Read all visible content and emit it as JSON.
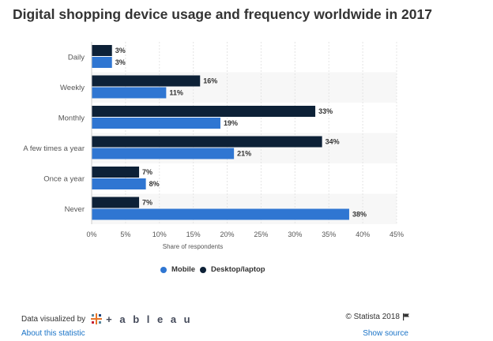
{
  "title": "Digital shopping device usage and frequency worldwide in 2017",
  "chart_data": {
    "type": "bar",
    "orientation": "horizontal",
    "categories": [
      "Daily",
      "Weekly",
      "Monthly",
      "A few times a year",
      "Once a year",
      "Never"
    ],
    "series": [
      {
        "name": "Desktop/laptop",
        "values": [
          3,
          16,
          33,
          34,
          7,
          7
        ],
        "color": "#0d2137"
      },
      {
        "name": "Mobile",
        "values": [
          3,
          11,
          19,
          21,
          8,
          38
        ],
        "color": "#2f76d2"
      }
    ],
    "value_suffix": "%",
    "xlabel": "Share of respondents",
    "xlim": [
      0,
      45
    ],
    "xticks": [
      0,
      5,
      10,
      15,
      20,
      25,
      30,
      35,
      40,
      45
    ],
    "xtick_labels": [
      "0%",
      "5%",
      "10%",
      "15%",
      "20%",
      "25%",
      "30%",
      "35%",
      "40%",
      "45%"
    ],
    "grid": true,
    "legend_position": "bottom-center",
    "legend_order": [
      "Mobile",
      "Desktop/laptop"
    ]
  },
  "footer": {
    "data_visualized_by": "Data visualized by",
    "tableau_word": "+ a b l e a u",
    "about_link": "About this statistic",
    "copyright": "© Statista 2018",
    "show_source": "Show source"
  },
  "icons": {
    "tableau": "tableau-logo-icon",
    "flag": "flag-icon"
  }
}
